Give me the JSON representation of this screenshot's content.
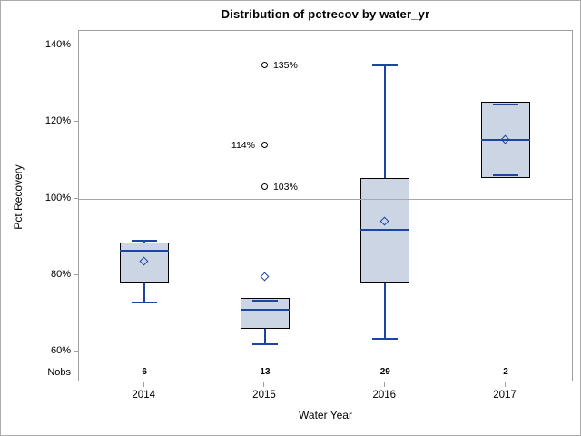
{
  "chart_data": {
    "type": "box",
    "title": "Distribution of pctrecov by water_yr",
    "xlabel": "Water Year",
    "ylabel": "Pct Recovery",
    "nobs_header": "Nobs",
    "ylim": [
      52,
      144
    ],
    "y_ticks": [
      {
        "value": 140,
        "label": "140%"
      },
      {
        "value": 120,
        "label": "120%"
      },
      {
        "value": 100,
        "label": "100%"
      },
      {
        "value": 80,
        "label": "80%"
      },
      {
        "value": 60,
        "label": "60%"
      }
    ],
    "reference_line": 100,
    "grid": "off",
    "legend": "none",
    "categories": [
      "2014",
      "2015",
      "2016",
      "2017"
    ],
    "groups": [
      {
        "category": "2014",
        "nobs": "6",
        "q1": 78,
        "median": 86.5,
        "q3": 88.5,
        "mean": 83.5,
        "whisker_low": 73,
        "whisker_high": 89,
        "outliers": []
      },
      {
        "category": "2015",
        "nobs": "13",
        "q1": 66,
        "median": 71,
        "q3": 74,
        "mean": 79.5,
        "whisker_low": 62,
        "whisker_high": 74,
        "outliers": [
          {
            "value": 135,
            "label": "135%",
            "side": "right"
          },
          {
            "value": 114,
            "label": "114%",
            "side": "left"
          },
          {
            "value": 103,
            "label": "103%",
            "side": "right"
          }
        ]
      },
      {
        "category": "2016",
        "nobs": "29",
        "q1": 78,
        "median": 92,
        "q3": 105.5,
        "mean": 94,
        "whisker_low": 63.5,
        "whisker_high": 135,
        "outliers": []
      },
      {
        "category": "2017",
        "nobs": "2",
        "q1": 105.5,
        "median": 115.5,
        "q3": 125.5,
        "mean": 115.5,
        "whisker_low": 105.5,
        "whisker_high": 125.5,
        "outliers": []
      }
    ],
    "colors": {
      "box_fill": "#ccd5e4",
      "box_border": "#000000",
      "accent_blue": "#1c45a0",
      "axis_gray": "#9e9e9e",
      "ref_line_gray": "#a8a8a8",
      "outlier_black": "#000000",
      "text": "#000000"
    }
  }
}
